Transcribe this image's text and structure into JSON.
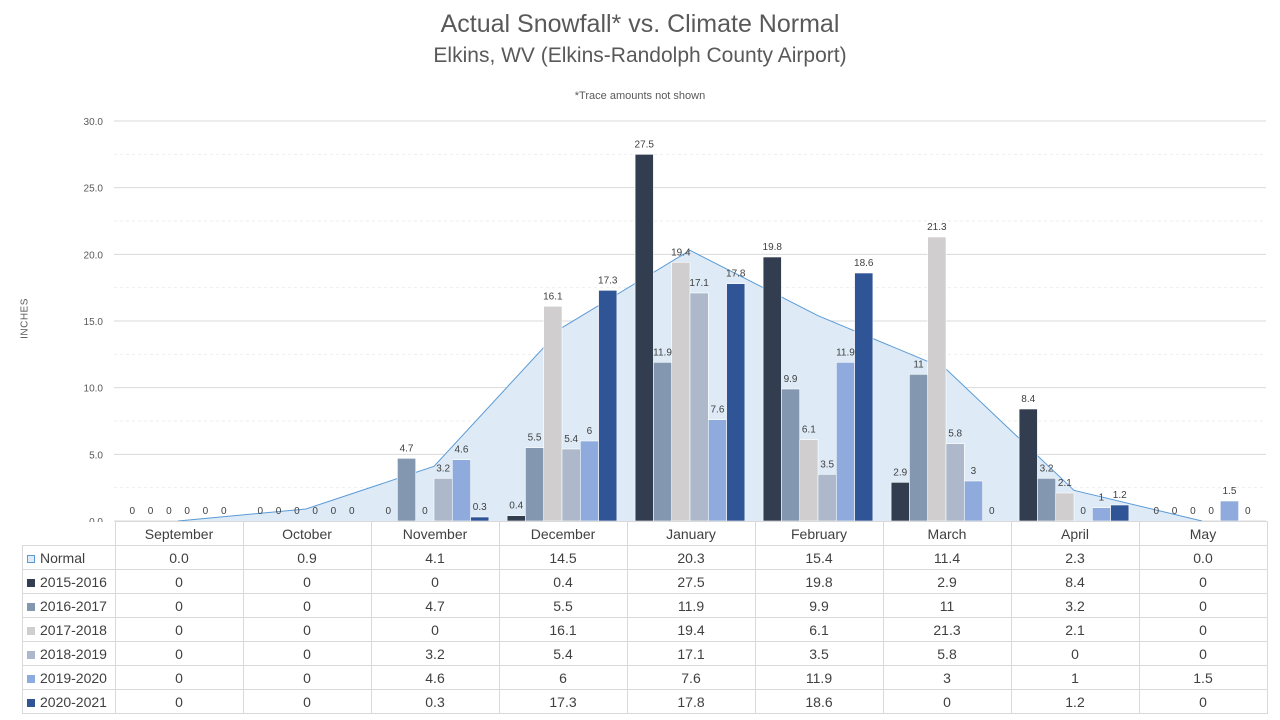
{
  "chart_data": {
    "type": "bar",
    "title": "Actual Snowfall* vs. Climate Normal",
    "subtitle": "Elkins, WV (Elkins-Randolph  County Airport)",
    "note": "*Trace amounts not shown",
    "ylabel": "INCHES",
    "xlabel": "",
    "ylim": [
      0,
      30
    ],
    "yticks": [
      "0.0",
      "5.0",
      "10.0",
      "15.0",
      "20.0",
      "25.0",
      "30.0"
    ],
    "grid": true,
    "legend": "table-below",
    "categories": [
      "September",
      "October",
      "November",
      "December",
      "January",
      "February",
      "March",
      "April",
      "May"
    ],
    "normal": {
      "name": "Normal",
      "type": "area",
      "color": "#deebf7",
      "line_color": "#5b9bd5",
      "values": [
        0.0,
        0.9,
        4.1,
        14.5,
        20.3,
        15.4,
        11.4,
        2.3,
        0.0
      ],
      "labels": [
        "0.0",
        "0.9",
        "4.1",
        "14.5",
        "20.3",
        "15.4",
        "11.4",
        "2.3",
        "0.0"
      ]
    },
    "series": [
      {
        "name": "2015-2016",
        "color": "#323e4f",
        "values": [
          0,
          0,
          0,
          0.4,
          27.5,
          19.8,
          2.9,
          8.4,
          0
        ],
        "labels": [
          "0",
          "0",
          "0",
          "0.4",
          "27.5",
          "19.8",
          "2.9",
          "8.4",
          "0"
        ]
      },
      {
        "name": "2016-2017",
        "color": "#8497b0",
        "values": [
          0,
          0,
          4.7,
          5.5,
          11.9,
          9.9,
          11,
          3.2,
          0
        ],
        "labels": [
          "0",
          "0",
          "4.7",
          "5.5",
          "11.9",
          "9.9",
          "11",
          "3.2",
          "0"
        ]
      },
      {
        "name": "2017-2018",
        "color": "#d0cece",
        "values": [
          0,
          0,
          0,
          16.1,
          19.4,
          6.1,
          21.3,
          2.1,
          0
        ],
        "labels": [
          "0",
          "0",
          "0",
          "16.1",
          "19.4",
          "6.1",
          "21.3",
          "2.1",
          "0"
        ]
      },
      {
        "name": "2018-2019",
        "color": "#adb9ca",
        "values": [
          0,
          0,
          3.2,
          5.4,
          17.1,
          3.5,
          5.8,
          0,
          0
        ],
        "labels": [
          "0",
          "0",
          "3.2",
          "5.4",
          "17.1",
          "3.5",
          "5.8",
          "0",
          "0"
        ]
      },
      {
        "name": "2019-2020",
        "color": "#8faadc",
        "values": [
          0,
          0,
          4.6,
          6,
          7.6,
          11.9,
          3,
          1,
          1.5
        ],
        "labels": [
          "0",
          "0",
          "4.6",
          "6",
          "7.6",
          "11.9",
          "3",
          "1",
          "1.5"
        ]
      },
      {
        "name": "2020-2021",
        "color": "#2f5597",
        "values": [
          0,
          0,
          0.3,
          17.3,
          17.8,
          18.6,
          0,
          1.2,
          0
        ],
        "labels": [
          "0",
          "0",
          "0.3",
          "17.3",
          "17.8",
          "18.6",
          "0",
          "1.2",
          "0"
        ]
      }
    ]
  }
}
